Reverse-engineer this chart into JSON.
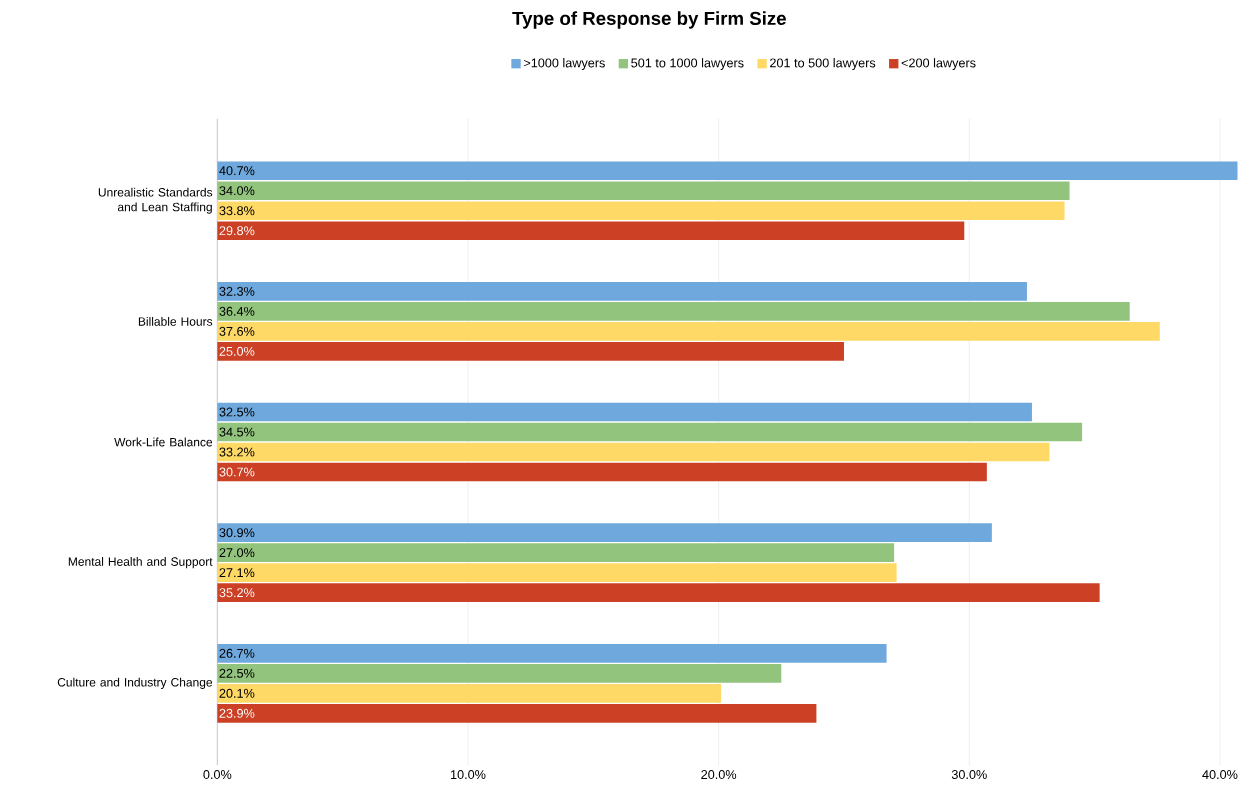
{
  "chart_data": {
    "type": "bar",
    "orientation": "horizontal",
    "title": "Type of Response by Firm Size",
    "categories": [
      "Unrealistic Standards and Lean Staffing",
      "Billable Hours",
      "Work-Life Balance",
      "Mental Health and Support",
      "Culture and Industry Change"
    ],
    "series": [
      {
        "name": ">1000 lawyers",
        "color": "#6fa8dc",
        "values": [
          40.7,
          32.3,
          32.5,
          30.9,
          26.7
        ],
        "value_labels": [
          "40.7%",
          "32.3%",
          "32.5%",
          "30.9%",
          "26.7%"
        ]
      },
      {
        "name": "501 to 1000 lawyers",
        "color": "#93c47d",
        "values": [
          34.0,
          36.4,
          34.5,
          27.0,
          22.5
        ],
        "value_labels": [
          "34.0%",
          "36.4%",
          "34.5%",
          "27.0%",
          "22.5%"
        ]
      },
      {
        "name": "201 to 500 lawyers",
        "color": "#ffd966",
        "values": [
          33.8,
          37.6,
          33.2,
          27.1,
          20.1
        ],
        "value_labels": [
          "33.8%",
          "37.6%",
          "33.2%",
          "27.1%",
          "20.1%"
        ]
      },
      {
        "name": "<200 lawyers",
        "color": "#cc4125",
        "values": [
          29.8,
          25.0,
          30.7,
          35.2,
          23.9
        ],
        "value_labels": [
          "29.8%",
          "25.0%",
          "30.7%",
          "35.2%",
          "23.9%"
        ]
      }
    ],
    "xlim": [
      0,
      40.8
    ],
    "xticks": [
      {
        "value": 0,
        "label": "0.0%"
      },
      {
        "value": 10,
        "label": "10.0%"
      },
      {
        "value": 20,
        "label": "20.0%"
      },
      {
        "value": 30,
        "label": "30.0%"
      },
      {
        "value": 40,
        "label": "40.0%"
      }
    ],
    "grid": "x",
    "legend": "top"
  }
}
